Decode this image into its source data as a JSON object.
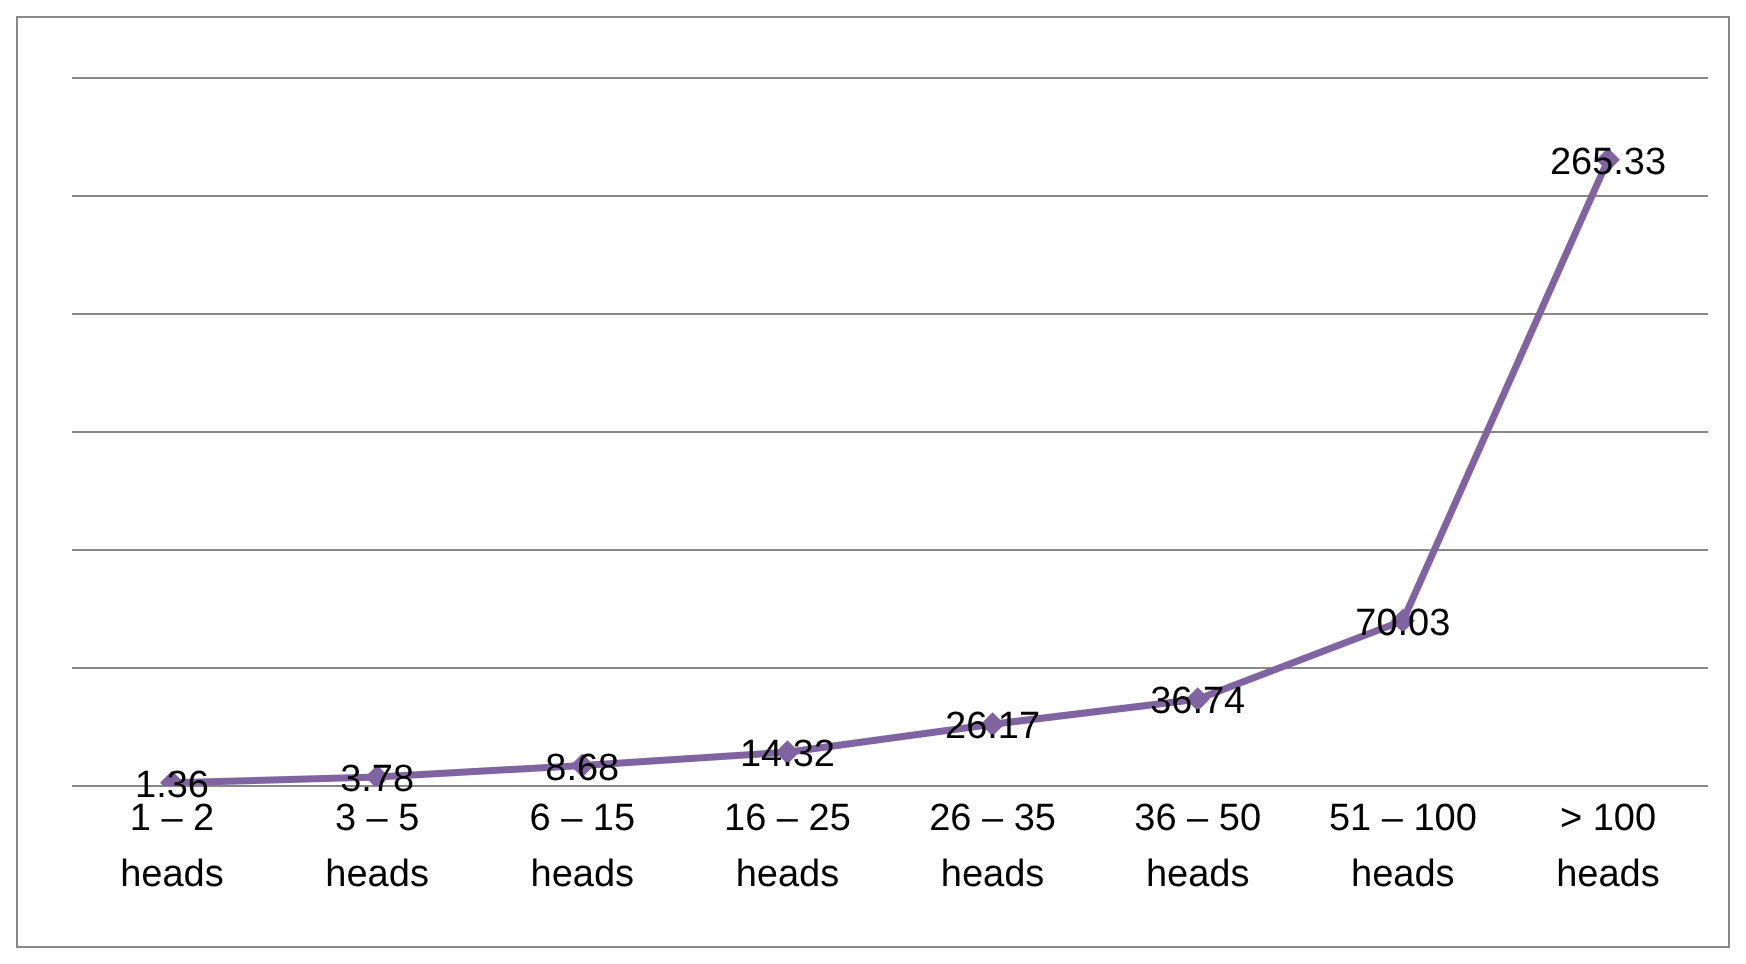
{
  "chart_data": {
    "type": "line",
    "categories": [
      "1 – 2 heads",
      "3 – 5 heads",
      "6 – 15 heads",
      "16 – 25 heads",
      "26 – 35 heads",
      "36 – 50 heads",
      "51 – 100 heads",
      "> 100 heads"
    ],
    "values": [
      1.36,
      3.78,
      8.68,
      14.32,
      26.17,
      36.74,
      70.03,
      265.33
    ],
    "color": "#8064a2",
    "marker": "diamond",
    "data_labels": true,
    "grid": "y",
    "tick_labels": "x",
    "ylim": [
      0,
      300
    ],
    "yticks": [
      {
        "value": 0,
        "label": null
      },
      {
        "value": 50,
        "label": null
      },
      {
        "value": 100,
        "label": null
      },
      {
        "value": 150,
        "label": null
      },
      {
        "value": 200,
        "label": null
      },
      {
        "value": 250,
        "label": null
      },
      {
        "value": 300,
        "label": null
      }
    ]
  }
}
